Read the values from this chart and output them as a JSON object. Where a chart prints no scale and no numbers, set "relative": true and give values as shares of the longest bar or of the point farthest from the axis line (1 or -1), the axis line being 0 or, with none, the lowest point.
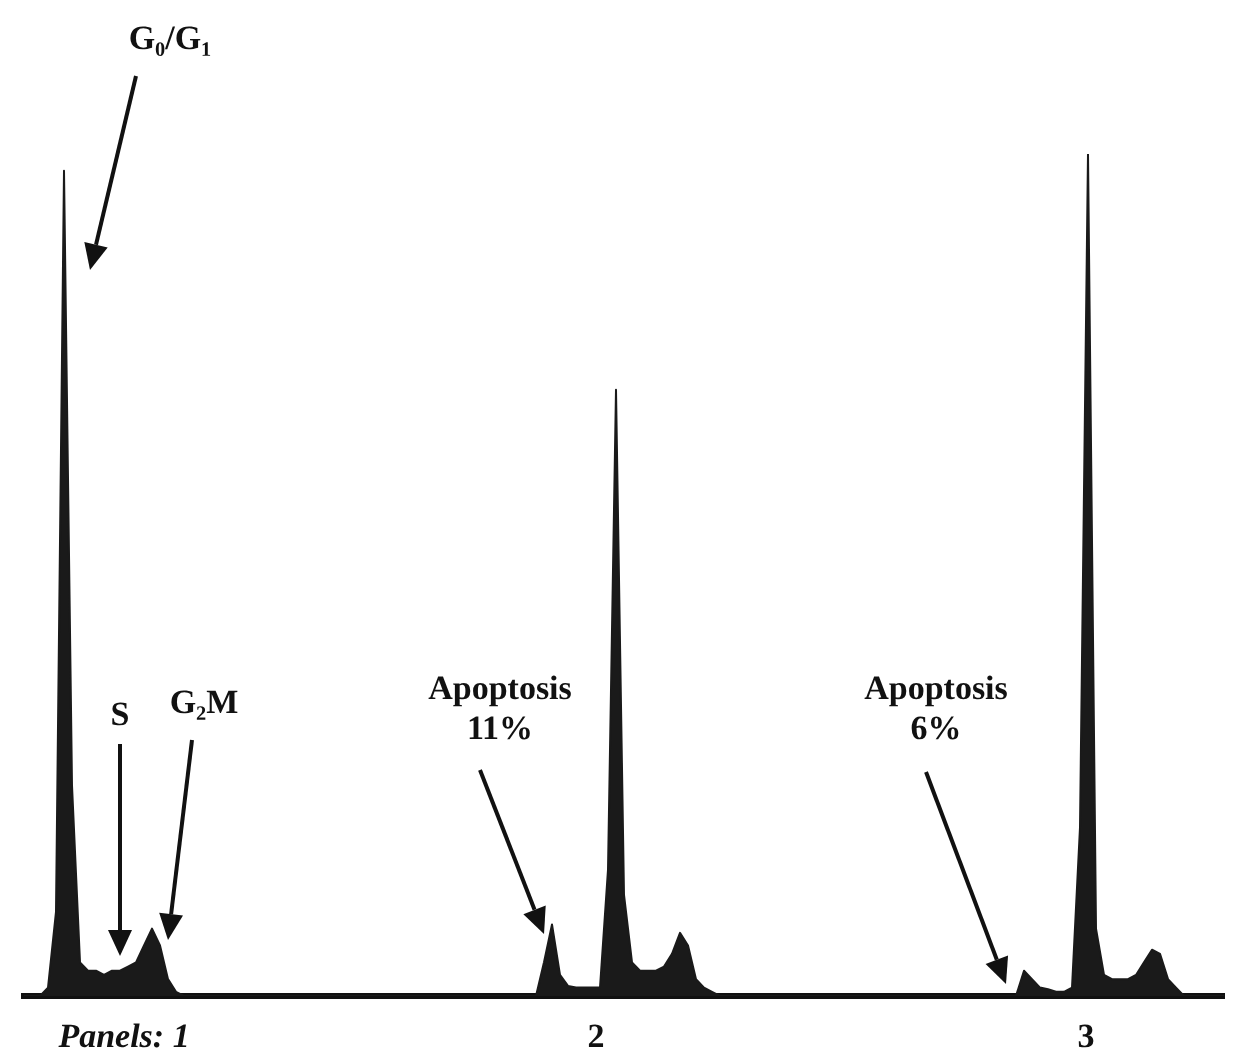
{
  "chart_data": {
    "type": "area",
    "relative": true,
    "tick_labels": false,
    "color": "#1a1a1a",
    "categories": [
      null,
      null,
      null,
      null,
      null,
      null,
      null,
      null,
      null,
      null,
      null,
      null,
      null,
      null,
      null,
      null,
      null,
      null,
      null,
      null,
      null,
      null,
      null,
      null,
      null,
      null,
      null,
      null,
      null,
      null,
      null,
      null,
      null,
      null,
      null,
      null,
      null,
      null,
      null,
      null,
      null,
      null,
      null,
      null,
      null,
      null,
      null,
      null,
      null,
      null,
      null,
      null,
      null,
      null,
      null,
      null,
      null,
      null,
      null,
      null,
      null,
      null,
      null,
      null,
      null,
      null,
      null,
      null,
      null,
      null,
      null,
      null,
      null,
      null,
      null,
      null,
      null,
      null,
      null,
      null,
      null,
      null,
      null,
      null,
      null,
      null,
      null,
      null,
      null,
      null,
      null,
      null,
      null,
      null,
      null,
      null,
      null,
      null,
      null,
      null,
      null,
      null,
      null,
      null,
      null,
      null,
      null,
      null,
      null,
      null,
      null,
      null,
      null,
      null,
      null,
      null,
      null,
      null,
      null,
      null,
      null,
      null,
      null,
      null,
      null,
      null,
      null,
      null,
      null,
      null,
      null,
      null,
      null,
      null,
      null,
      null,
      null,
      null,
      null,
      null,
      null,
      null,
      null,
      null,
      null,
      null,
      null,
      null,
      null,
      null,
      null
    ],
    "values": [
      0,
      0,
      0,
      0.01,
      0.1,
      0.98,
      0.25,
      0.04,
      0.03,
      0.03,
      0.025,
      0.03,
      0.03,
      0.035,
      0.04,
      0.06,
      0.08,
      0.06,
      0.02,
      0.005,
      0,
      0,
      0,
      0,
      0,
      0,
      0,
      0,
      0,
      0,
      0,
      0,
      0,
      0,
      0,
      0,
      0,
      0,
      0,
      0,
      0,
      0,
      0,
      0,
      0,
      0,
      0,
      0,
      0,
      0,
      0,
      0,
      0,
      0,
      0,
      0,
      0,
      0,
      0,
      0,
      0,
      0,
      0,
      0,
      0,
      0.04,
      0.085,
      0.025,
      0.012,
      0.01,
      0.01,
      0.01,
      0.01,
      0.15,
      0.72,
      0.12,
      0.04,
      0.03,
      0.03,
      0.03,
      0.035,
      0.05,
      0.075,
      0.06,
      0.02,
      0.01,
      0.005,
      0,
      0,
      0,
      0,
      0,
      0,
      0,
      0,
      0,
      0,
      0,
      0,
      0,
      0,
      0,
      0,
      0,
      0,
      0,
      0,
      0,
      0,
      0,
      0,
      0,
      0,
      0,
      0,
      0,
      0,
      0,
      0,
      0,
      0,
      0,
      0,
      0,
      0,
      0.03,
      0.02,
      0.01,
      0.008,
      0.005,
      0.005,
      0.01,
      0.2,
      1,
      0.08,
      0.025,
      0.02,
      0.02,
      0.02,
      0.025,
      0.04,
      0.055,
      0.05,
      0.02,
      0.01,
      0,
      0,
      0,
      0,
      0,
      0
    ],
    "annotations": [
      "G₀/G₁",
      "S",
      "G₂M",
      "Apoptosis 11%",
      "Apoptosis 6%",
      "Panels: 1",
      "2",
      "3"
    ]
  }
}
